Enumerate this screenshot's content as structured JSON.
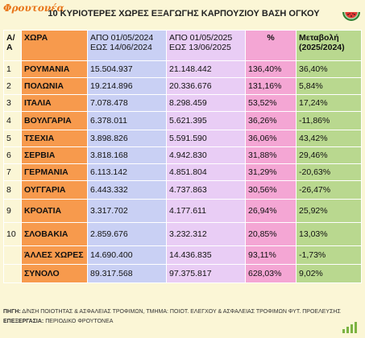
{
  "brand": {
    "logo_text": "Φρουτονέα"
  },
  "title": "10 ΚΥΡΙΟΤΕΡΕΣ ΧΩΡΕΣ ΕΞΑΓΩΓΗΣ ΚΑΡΠΟΥΖΙΟΥ ΒΑΣΗ ΟΓΚΟΥ",
  "headers": {
    "aa_line1": "Α/",
    "aa_line2": "Α",
    "country": "ΧΩΡΑ",
    "period1_line1": "ΑΠΟ 01/05/2024",
    "period1_line2": "ΕΩΣ  14/06/2024",
    "period2_line1": "ΑΠΟ 01/05/2025",
    "period2_line2": "ΕΩΣ  13/06/2025",
    "pct": "%",
    "change_line1": "Μεταβολή",
    "change_line2": "(2025/2024)"
  },
  "rows": [
    {
      "aa": "1",
      "country": "ΡΟΥΜΑΝΙΑ",
      "v2024": "15.504.937",
      "v2025": "21.148.442",
      "pct": "136,40%",
      "change": "36,40%"
    },
    {
      "aa": "2",
      "country": "ΠΟΛΩΝΙΑ",
      "v2024": "19.214.896",
      "v2025": "20.336.676",
      "pct": "131,16%",
      "change": "5,84%"
    },
    {
      "aa": "3",
      "country": "ΙΤΑΛΙΑ",
      "v2024": "7.078.478",
      "v2025": "8.298.459",
      "pct": "53,52%",
      "change": "17,24%"
    },
    {
      "aa": "4",
      "country": "ΒΟΥΛΓΑΡΙΑ",
      "v2024": "6.378.011",
      "v2025": "5.621.395",
      "pct": "36,26%",
      "change": "-11,86%"
    },
    {
      "aa": "5",
      "country": "ΤΣΕΧΙΑ",
      "v2024": "3.898.826",
      "v2025": "5.591.590",
      "pct": "36,06%",
      "change": "43,42%"
    },
    {
      "aa": "6",
      "country": "ΣΕΡΒΙΑ",
      "v2024": "3.818.168",
      "v2025": "4.942.830",
      "pct": "31,88%",
      "change": "29,46%"
    },
    {
      "aa": "7",
      "country": "ΓΕΡΜΑΝΙΑ",
      "v2024": "6.113.142",
      "v2025": "4.851.804",
      "pct": "31,29%",
      "change": "-20,63%"
    },
    {
      "aa": "8",
      "country": "ΟΥΓΓΑΡΙΑ",
      "v2024": "6.443.332",
      "v2025": "4.737.863",
      "pct": "30,56%",
      "change": "-26,47%"
    },
    {
      "aa": "9",
      "country": "ΚΡΟΑΤΙΑ",
      "v2024": "3.317.702",
      "v2025": "4.177.611",
      "pct": "26,94%",
      "change": "25,92%"
    },
    {
      "aa": "10",
      "country": "ΣΛΟΒΑΚΙΑ",
      "v2024": "2.859.676",
      "v2025": "3.232.312",
      "pct": "20,85%",
      "change": "13,03%"
    },
    {
      "aa": "",
      "country": "ΆΛΛΕΣ ΧΩΡΕΣ",
      "v2024": "14.690.400",
      "v2025": "14.436.835",
      "pct": "93,11%",
      "change": "-1,73%"
    },
    {
      "aa": "",
      "country": "ΣΥΝΟΛΟ",
      "v2024": "89.317.568",
      "v2025": "97.375.817",
      "pct": "628,03%",
      "change": "9,02%"
    }
  ],
  "footer": {
    "source_label": "ΠΗΓΗ:",
    "source_text": " Δ/ΝΣΗ ΠΟΙΟΤΗΤΑΣ & ΑΣΦΑΛΕΙΑΣ ΤΡΟΦΙΜΩΝ, ΤΜΗΜΑ: ΠΟΙΟΤ. ΕΛΕΓΧΟΥ & ΑΣΦΑΛΕΙΑΣ ΤΡΟΦΙΜΩΝ ΦΥΤ. ΠΡΟΕΛΕΥΣΗΣ",
    "processing_label": "ΕΠΕΞΕΡΓΑΣΙΑ:",
    "processing_text": " ΠΕΡΙΟΔΙΚΟ ΦΡΟΥΤΟΝΕΑ"
  },
  "icons": {
    "top_right": "watermelon-icon",
    "bottom_right": "bar-chart-icon"
  },
  "colors": {
    "country_col": "#f79a4d",
    "period1_col": "#c9d0f4",
    "period2_col": "#e9cdf5",
    "pct_col": "#f4a6d4",
    "change_col": "#b9d88f",
    "background": "#fbf6d6",
    "logo": "#e8751a"
  }
}
